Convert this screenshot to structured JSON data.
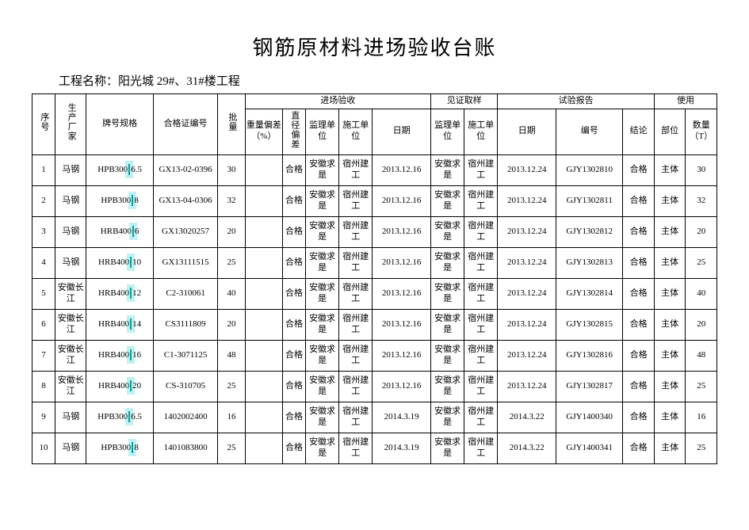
{
  "title": "钢筋原材料进场验收台账",
  "project_label": "工程名称：",
  "project_name": "阳光城 29#、31#楼工程",
  "headers": {
    "seq": "序号",
    "mfr": "生产厂家",
    "spec": "牌号规格",
    "cert": "合格证编号",
    "batch": "批量",
    "incoming": "进场验收",
    "witness": "见证取样",
    "report": "试验报告",
    "usage": "使用",
    "weight_dev": "重量偏差（%）",
    "dia_dev": "直径偏差",
    "supervisor": "监理单位",
    "contractor": "施工单位",
    "date": "日期",
    "w_supervisor": "监理单位",
    "w_contractor": "施工单位",
    "r_date": "日期",
    "r_no": "编号",
    "r_result": "结论",
    "u_part": "部位",
    "u_qty": "数量（T）"
  },
  "rows": [
    {
      "seq": "1",
      "mfr": "马钢",
      "spec_a": "HPB300",
      "spec_b": "6.5",
      "cert": "GX13-02-0396",
      "batch": "30",
      "wdev": "",
      "ddev": "合格",
      "sup": "安徽求是",
      "con": "宿州建工",
      "date1": "2013.12.16",
      "wsup": "安徽求是",
      "wcon": "宿州建工",
      "date2": "2013.12.24",
      "rno": "GJY1302810",
      "res": "合格",
      "part": "主体",
      "qty": "30"
    },
    {
      "seq": "2",
      "mfr": "马钢",
      "spec_a": "HPB300",
      "spec_b": "8",
      "cert": "GX13-04-0306",
      "batch": "32",
      "wdev": "",
      "ddev": "合格",
      "sup": "安徽求是",
      "con": "宿州建工",
      "date1": "2013.12.16",
      "wsup": "安徽求是",
      "wcon": "宿州建工",
      "date2": "2013.12.24",
      "rno": "GJY1302811",
      "res": "合格",
      "part": "主体",
      "qty": "32"
    },
    {
      "seq": "3",
      "mfr": "马钢",
      "spec_a": "HRB400",
      "spec_b": "6",
      "cert": "GX13020257",
      "batch": "20",
      "wdev": "",
      "ddev": "合格",
      "sup": "安徽求是",
      "con": "宿州建工",
      "date1": "2013.12.16",
      "wsup": "安徽求是",
      "wcon": "宿州建工",
      "date2": "2013.12.24",
      "rno": "GJY1302812",
      "res": "合格",
      "part": "主体",
      "qty": "20"
    },
    {
      "seq": "4",
      "mfr": "马钢",
      "spec_a": "HRB400",
      "spec_b": "10",
      "cert": "GX13111515",
      "batch": "25",
      "wdev": "",
      "ddev": "合格",
      "sup": "安徽求是",
      "con": "宿州建工",
      "date1": "2013.12.16",
      "wsup": "安徽求是",
      "wcon": "宿州建工",
      "date2": "2013.12.24",
      "rno": "GJY1302813",
      "res": "合格",
      "part": "主体",
      "qty": "25"
    },
    {
      "seq": "5",
      "mfr": "安徽长江",
      "spec_a": "HRB400",
      "spec_b": "12",
      "cert": "C2-310061",
      "batch": "40",
      "wdev": "",
      "ddev": "合格",
      "sup": "安徽求是",
      "con": "宿州建工",
      "date1": "2013.12.16",
      "wsup": "安徽求是",
      "wcon": "宿州建工",
      "date2": "2013.12.24",
      "rno": "GJY1302814",
      "res": "合格",
      "part": "主体",
      "qty": "40"
    },
    {
      "seq": "6",
      "mfr": "安徽长江",
      "spec_a": "HRB400",
      "spec_b": "14",
      "cert": "CS3111809",
      "batch": "20",
      "wdev": "",
      "ddev": "合格",
      "sup": "安徽求是",
      "con": "宿州建工",
      "date1": "2013.12.16",
      "wsup": "安徽求是",
      "wcon": "宿州建工",
      "date2": "2013.12.24",
      "rno": "GJY1302815",
      "res": "合格",
      "part": "主体",
      "qty": "20"
    },
    {
      "seq": "7",
      "mfr": "安徽长江",
      "spec_a": "HRB400",
      "spec_b": "16",
      "cert": "C1-3071125",
      "batch": "48",
      "wdev": "",
      "ddev": "合格",
      "sup": "安徽求是",
      "con": "宿州建工",
      "date1": "2013.12.16",
      "wsup": "安徽求是",
      "wcon": "宿州建工",
      "date2": "2013.12.24",
      "rno": "GJY1302816",
      "res": "合格",
      "part": "主体",
      "qty": "48"
    },
    {
      "seq": "8",
      "mfr": "安徽长江",
      "spec_a": "HRB400",
      "spec_b": "20",
      "cert": "CS-310705",
      "batch": "25",
      "wdev": "",
      "ddev": "合格",
      "sup": "安徽求是",
      "con": "宿州建工",
      "date1": "2013.12.16",
      "wsup": "安徽求是",
      "wcon": "宿州建工",
      "date2": "2013.12.24",
      "rno": "GJY1302817",
      "res": "合格",
      "part": "主体",
      "qty": "25"
    },
    {
      "seq": "9",
      "mfr": "马钢",
      "spec_a": "HPB300",
      "spec_b": "6.5",
      "cert": "1402002400",
      "batch": "16",
      "wdev": "",
      "ddev": "合格",
      "sup": "安徽求是",
      "con": "宿州建工",
      "date1": "2014.3.19",
      "wsup": "安徽求是",
      "wcon": "宿州建工",
      "date2": "2014.3.22",
      "rno": "GJY1400340",
      "res": "合格",
      "part": "主体",
      "qty": "16"
    },
    {
      "seq": "10",
      "mfr": "马钢",
      "spec_a": "HPB300",
      "spec_b": "8",
      "cert": "1401083800",
      "batch": "25",
      "wdev": "",
      "ddev": "合格",
      "sup": "安徽求是",
      "con": "宿州建工",
      "date1": "2014.3.19",
      "wsup": "安徽求是",
      "wcon": "宿州建工",
      "date2": "2014.3.22",
      "rno": "GJY1400341",
      "res": "合格",
      "part": "主体",
      "qty": "25"
    }
  ],
  "style": {
    "title_fontsize": 26,
    "body_fontsize": 11,
    "border_color": "#000000",
    "background": "#ffffff",
    "cursor_color": "#00a0a0"
  }
}
